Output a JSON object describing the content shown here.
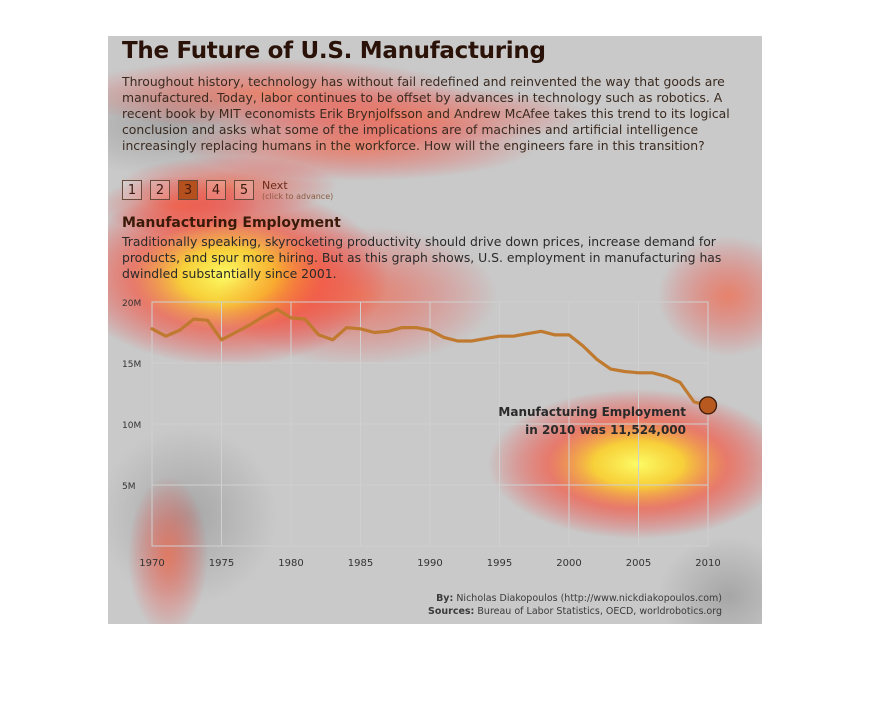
{
  "page": {
    "title": "The Future of U.S. Manufacturing",
    "intro": "Throughout history, technology has without fail redefined and reinvented the way that goods are manufactured. Today, labor continues to be offset by advances in technology such as robotics. A recent book by MIT economists Erik Brynjolfsson and Andrew McAfee takes this trend to its logical conclusion and asks what some of the implications are of machines and artificial intelligence increasingly replacing humans in the workforce. How will the engineers fare in this transition?"
  },
  "pager": {
    "pages": [
      "1",
      "2",
      "3",
      "4",
      "5"
    ],
    "active_index": 2,
    "next_label": "Next",
    "next_hint": "(click to advance)"
  },
  "section": {
    "heading": "Manufacturing Employment",
    "text": "Traditionally speaking, skyrocketing productivity should drive down prices, increase demand for products, and spur more hiring. But as this graph shows, U.S. employment in manufacturing has dwindled substantially since 2001."
  },
  "annotation": {
    "line1": "Manufacturing Employment",
    "line2": "in 2010 was 11,524,000"
  },
  "credits": {
    "by_label": "By:",
    "by_text": "Nicholas Diakopoulos (http://www.nickdiakopoulos.com)",
    "sources_label": "Sources:",
    "sources_text": "Bureau of Labor Statistics, OECD, worldrobotics.org"
  },
  "colors": {
    "line": "#c07a30",
    "grid": "#d0d0d0",
    "marker_fill": "#b85a20",
    "heat_core": "#ffff40",
    "heat_mid": "#ff3030"
  },
  "chart_data": {
    "type": "line",
    "title": "Manufacturing Employment",
    "x": [
      1970,
      1971,
      1972,
      1973,
      1974,
      1975,
      1976,
      1977,
      1978,
      1979,
      1980,
      1981,
      1982,
      1983,
      1984,
      1985,
      1986,
      1987,
      1988,
      1989,
      1990,
      1991,
      1992,
      1993,
      1994,
      1995,
      1996,
      1997,
      1998,
      1999,
      2000,
      2001,
      2002,
      2003,
      2004,
      2005,
      2006,
      2007,
      2008,
      2009,
      2010
    ],
    "series": [
      {
        "values": [
          17.8,
          17.2,
          17.7,
          18.6,
          18.5,
          16.9,
          17.5,
          18.1,
          18.8,
          19.4,
          18.7,
          18.6,
          17.3,
          16.9,
          17.9,
          17.8,
          17.5,
          17.6,
          17.9,
          17.9,
          17.7,
          17.1,
          16.8,
          16.8,
          17.0,
          17.2,
          17.2,
          17.4,
          17.6,
          17.3,
          17.3,
          16.4,
          15.3,
          14.5,
          14.3,
          14.2,
          14.2,
          13.9,
          13.4,
          11.8,
          11.524
        ]
      }
    ],
    "xticks": [
      "1970",
      "1975",
      "1980",
      "1985",
      "1990",
      "1995",
      "2000",
      "2005",
      "2010"
    ],
    "yticks": [
      "5M",
      "10M",
      "15M",
      "20M"
    ],
    "xlim": [
      1970,
      2010
    ],
    "ylim": [
      0,
      20
    ],
    "grid": true,
    "highlight": {
      "x": 2010,
      "y": 11.524
    }
  }
}
